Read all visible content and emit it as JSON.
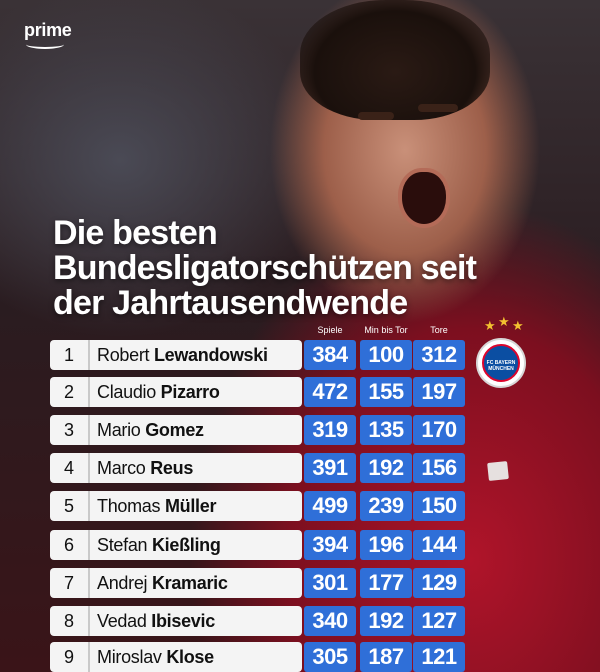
{
  "brand": {
    "logo_text": "prime"
  },
  "headline": {
    "lines": [
      "Die besten",
      "Bundesligatorschützen seit",
      "der Jahrtausendwende"
    ]
  },
  "columns": {
    "games": "Spiele",
    "min_per_goal": "Min bis Tor",
    "goals": "Tore"
  },
  "badge": {
    "text": "FC BAYERN MÜNCHEN",
    "star_glyph": "★"
  },
  "players": [
    {
      "rank": "1",
      "first": "Robert",
      "last": "Lewandowski",
      "games": "384",
      "min_per_goal": "100",
      "goals": "312"
    },
    {
      "rank": "2",
      "first": "Claudio",
      "last": "Pizarro",
      "games": "472",
      "min_per_goal": "155",
      "goals": "197"
    },
    {
      "rank": "3",
      "first": "Mario",
      "last": "Gomez",
      "games": "319",
      "min_per_goal": "135",
      "goals": "170"
    },
    {
      "rank": "4",
      "first": "Marco",
      "last": "Reus",
      "games": "391",
      "min_per_goal": "192",
      "goals": "156"
    },
    {
      "rank": "5",
      "first": "Thomas",
      "last": "Müller",
      "games": "499",
      "min_per_goal": "239",
      "goals": "150"
    },
    {
      "rank": "6",
      "first": "Stefan",
      "last": "Kießling",
      "games": "394",
      "min_per_goal": "196",
      "goals": "144"
    },
    {
      "rank": "7",
      "first": "Andrej",
      "last": "Kramaric",
      "games": "301",
      "min_per_goal": "177",
      "goals": "129"
    },
    {
      "rank": "8",
      "first": "Vedad",
      "last": "Ibisevic",
      "games": "340",
      "min_per_goal": "192",
      "goals": "127"
    },
    {
      "rank": "9",
      "first": "Miroslav",
      "last": "Klose",
      "games": "305",
      "min_per_goal": "187",
      "goals": "121"
    }
  ],
  "colors": {
    "stat_blue": "#2f6fd8",
    "row_bg": "#f4f4f4",
    "bayern_red": "#dc052d"
  }
}
